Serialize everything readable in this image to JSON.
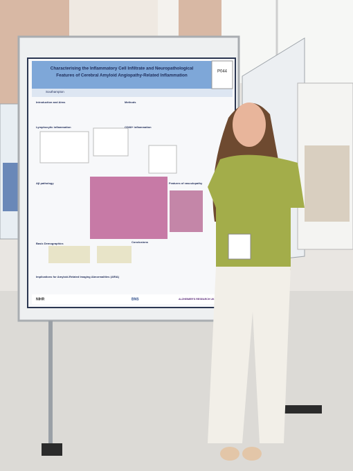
{
  "poster": {
    "title_lines": [
      "Characterising the Inflammatory Cell Infiltrate and Neuropathological",
      "Features of Cerebral Amyloid Angiopathy-Related Inflammation"
    ],
    "code": "P044",
    "university": "Southampton",
    "sections": [
      "Introduction and Aims",
      "Methods",
      "Lymphocytic inflammation",
      "CD68+ inflammation",
      "Aβ pathology",
      "Features of vasculopathy",
      "Basic Demographics",
      "Conclusions",
      "Implications for Amyloid-Related Imaging Abnormalities (ARIA)"
    ],
    "logos": [
      "NIHR",
      "BNS",
      "ALZHEIMER'S RESEARCH UK"
    ]
  }
}
